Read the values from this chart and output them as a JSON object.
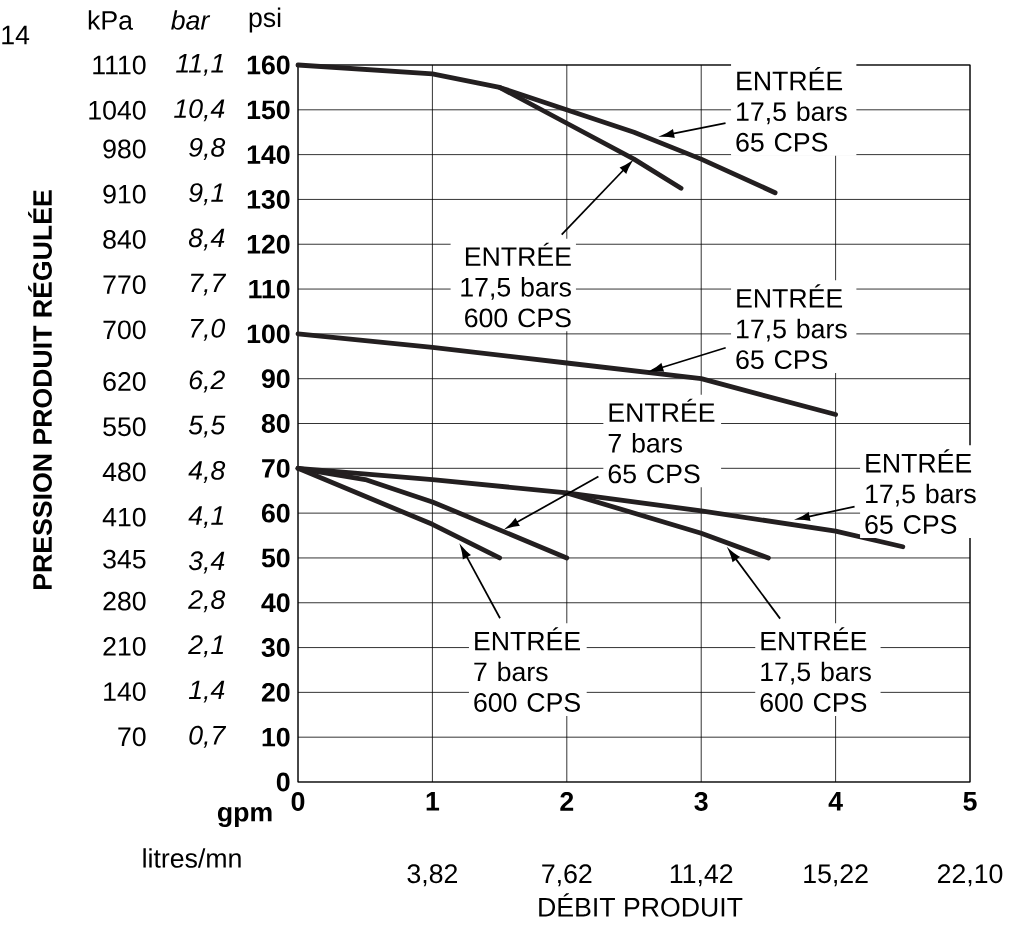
{
  "chart_data": {
    "type": "line",
    "xlabel": "DÉBIT PRODUIT",
    "ylabel": "psi",
    "y2label": "PRESSION PRODUIT RÉGULÉE",
    "y3label": "bar",
    "xlim": [
      0,
      5
    ],
    "xticks": [
      0,
      1,
      2,
      3,
      4,
      5
    ],
    "ylim": [
      0,
      160
    ],
    "yticks": [
      0,
      10,
      20,
      30,
      40,
      50,
      60,
      70,
      80,
      90,
      100,
      110,
      120,
      130,
      140,
      150,
      160
    ],
    "y2lim": [
      0,
      1110
    ],
    "y2ticks": [
      70,
      140,
      210,
      280,
      345,
      410,
      480,
      550,
      620,
      700,
      770,
      840,
      910,
      980,
      1040,
      1110
    ],
    "y3lim": [
      0,
      11.1
    ],
    "y3ticks": [
      {
        "value": 0.7,
        "label": "0,7"
      },
      {
        "value": 1.4,
        "label": "1,4"
      },
      {
        "value": 2.1,
        "label": "2,1"
      },
      {
        "value": 2.8,
        "label": "2,8"
      },
      {
        "value": 3.4,
        "label": "3,4"
      },
      {
        "value": 4.1,
        "label": "4,1"
      },
      {
        "value": 4.8,
        "label": "4,8"
      },
      {
        "value": 5.5,
        "label": "5,5"
      },
      {
        "value": 6.2,
        "label": "6,2"
      },
      {
        "value": 7.0,
        "label": "7,0"
      },
      {
        "value": 7.7,
        "label": "7,7"
      },
      {
        "value": 8.4,
        "label": "8,4"
      },
      {
        "value": 9.1,
        "label": "9,1"
      },
      {
        "value": 9.8,
        "label": "9,8"
      },
      {
        "value": 10.4,
        "label": "10,4"
      },
      {
        "value": 11.1,
        "label": "11,1"
      }
    ],
    "grid": true,
    "annotations": [
      "kPa",
      "gpm",
      "14",
      {
        "text": "ENTRÉE 17,5 bars 65 CPS",
        "x": 2.68,
        "y": 144
      },
      "ENTRÉE 17,5 bars 600 CPS",
      "ENTRÉE 17,5 bars 65 CPS",
      "ENTRÉE 7 bars 65 CPS",
      {
        "text": "ENTRÉE 17,5 bars 65 CPS",
        "x": 3.69,
        "y": 58.5
      },
      "ENTRÉE 7 bars 600 CPS",
      "ENTRÉE 17,5 bars 600 CPS",
      "litres/mn",
      "3,82",
      "7,62",
      "11,42",
      "15,22",
      "22,10"
    ],
    "series": [
      {
        "color": "#231f20",
        "x": [
          0,
          1,
          1.5,
          2,
          2.5,
          3,
          3.55
        ],
        "values": [
          160,
          158,
          155,
          150,
          145,
          139,
          131.5
        ]
      },
      {
        "color": "#231f20",
        "x": [
          1.5,
          2,
          2.5,
          2.85
        ],
        "values": [
          155,
          147,
          139,
          132.5
        ]
      },
      {
        "color": "#231f20",
        "x": [
          0,
          1,
          2,
          3,
          4
        ],
        "values": [
          100,
          97,
          93.5,
          90,
          82
        ]
      },
      {
        "color": "#231f20",
        "x": [
          0,
          1,
          2,
          3,
          4,
          4.5
        ],
        "values": [
          70,
          67.5,
          64.5,
          60.5,
          56,
          52.5
        ]
      },
      {
        "color": "#231f20",
        "x": [
          2,
          3,
          3.5
        ],
        "values": [
          64.5,
          55.5,
          50
        ]
      },
      {
        "color": "#231f20",
        "x": [
          0,
          0.5,
          1,
          2
        ],
        "values": [
          70,
          67.5,
          62.5,
          50
        ]
      },
      {
        "color": "#231f20",
        "x": [
          0,
          1,
          1.5
        ],
        "values": [
          70,
          57.5,
          50
        ]
      }
    ]
  }
}
